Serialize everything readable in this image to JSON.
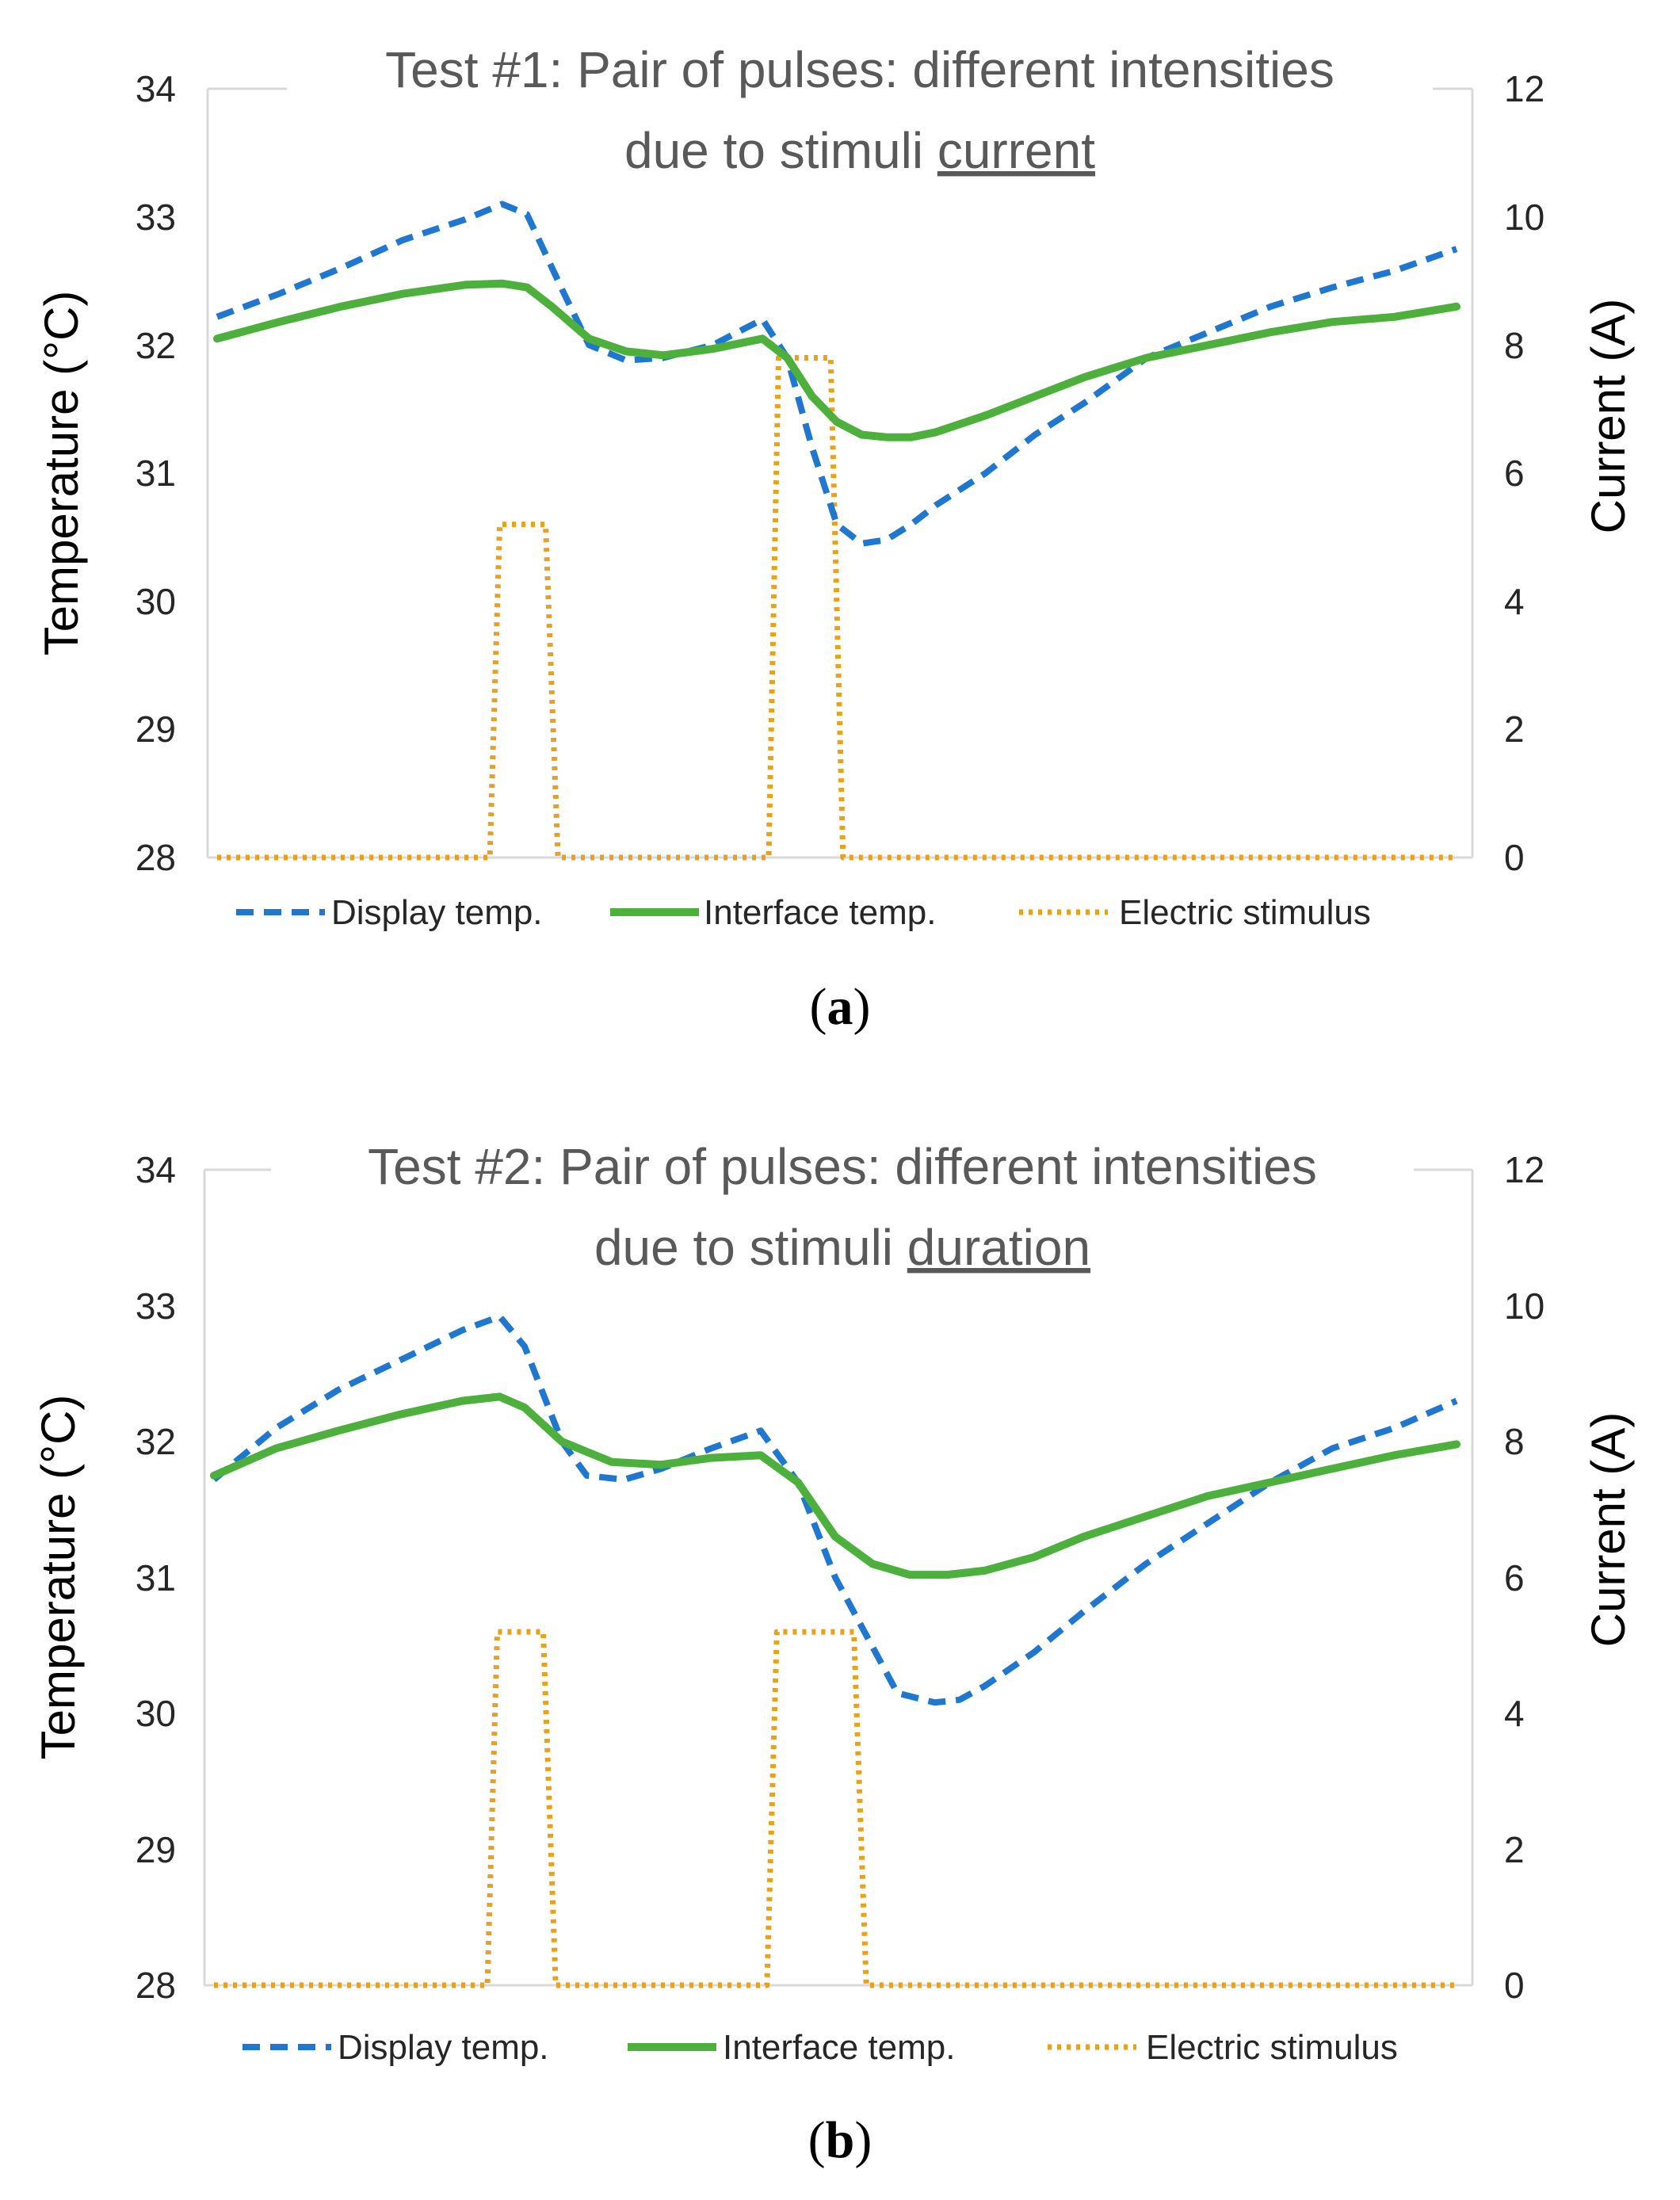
{
  "chart_data": [
    {
      "type": "line",
      "panel_label": "a",
      "title_line1": "Test #1: Pair of pulses: different intensities",
      "title_line2_prefix": "due to stimuli ",
      "title_line2_underlined": "current",
      "ylabel_left": "Temperature (°C)",
      "ylabel_right": "Current (A)",
      "xlabel": "",
      "ylim_left": [
        28,
        34
      ],
      "ylim_right": [
        0,
        12
      ],
      "yticks_left": [
        28,
        29,
        30,
        31,
        32,
        33,
        34
      ],
      "yticks_right": [
        0,
        2,
        4,
        6,
        8,
        10,
        12
      ],
      "xlim": [
        0,
        100
      ],
      "legend": [
        "Display temp.",
        "Interface temp.",
        "Electric stimulus"
      ],
      "series": [
        {
          "name": "Display temp.",
          "axis": "left",
          "color": "#1f77d0",
          "style": "dashed",
          "x": [
            0,
            5,
            10,
            15,
            20,
            23,
            25,
            28,
            30,
            33,
            36,
            40,
            44,
            46,
            48,
            50,
            52,
            54,
            56,
            58,
            62,
            66,
            70,
            75,
            80,
            85,
            90,
            95,
            100
          ],
          "y": [
            32.22,
            32.4,
            32.6,
            32.82,
            32.98,
            33.1,
            33.02,
            32.4,
            32.0,
            31.88,
            31.9,
            32.0,
            32.2,
            31.9,
            31.2,
            30.6,
            30.45,
            30.48,
            30.6,
            30.75,
            31.0,
            31.3,
            31.55,
            31.9,
            32.1,
            32.3,
            32.45,
            32.58,
            32.75
          ]
        },
        {
          "name": "Interface temp.",
          "axis": "left",
          "color": "#4db03c",
          "style": "solid",
          "x": [
            0,
            5,
            10,
            15,
            20,
            23,
            25,
            27,
            30,
            33,
            36,
            40,
            44,
            46,
            48,
            50,
            52,
            54,
            56,
            58,
            62,
            66,
            70,
            75,
            80,
            85,
            90,
            95,
            100
          ],
          "y": [
            32.05,
            32.18,
            32.3,
            32.4,
            32.47,
            32.48,
            32.45,
            32.3,
            32.05,
            31.95,
            31.92,
            31.97,
            32.05,
            31.9,
            31.6,
            31.4,
            31.3,
            31.28,
            31.28,
            31.32,
            31.45,
            31.6,
            31.75,
            31.9,
            32.0,
            32.1,
            32.18,
            32.22,
            32.3
          ]
        },
        {
          "name": "Electric stimulus",
          "axis": "right",
          "color": "#e8a020",
          "style": "dotted",
          "x": [
            0,
            22,
            22.8,
            24.5,
            26.5,
            27.5,
            44.5,
            45.3,
            47,
            49.5,
            50.5,
            100
          ],
          "y": [
            0,
            0,
            5.2,
            5.2,
            5.2,
            0,
            0,
            7.8,
            7.8,
            7.8,
            0,
            0
          ]
        }
      ]
    },
    {
      "type": "line",
      "panel_label": "b",
      "title_line1": "Test #2: Pair of pulses: different intensities",
      "title_line2_prefix": "due to stimuli ",
      "title_line2_underlined": "duration",
      "ylabel_left": "Temperature (°C)",
      "ylabel_right": "Current (A)",
      "xlabel": "",
      "ylim_left": [
        28,
        34
      ],
      "ylim_right": [
        0,
        12
      ],
      "yticks_left": [
        28,
        29,
        30,
        31,
        32,
        33,
        34
      ],
      "yticks_right": [
        0,
        2,
        4,
        6,
        8,
        10,
        12
      ],
      "xlim": [
        0,
        100
      ],
      "legend": [
        "Display temp.",
        "Interface temp.",
        "Electric stimulus"
      ],
      "series": [
        {
          "name": "Display temp.",
          "axis": "left",
          "color": "#1f77d0",
          "style": "dashed",
          "x": [
            0,
            5,
            10,
            15,
            20,
            23,
            25,
            28,
            30,
            33,
            36,
            40,
            44,
            47,
            50,
            55,
            58,
            60,
            62,
            66,
            70,
            75,
            80,
            85,
            90,
            95,
            100
          ],
          "y": [
            31.72,
            32.1,
            32.38,
            32.6,
            32.82,
            32.92,
            32.7,
            32.0,
            31.75,
            31.72,
            31.8,
            31.95,
            32.08,
            31.7,
            31.0,
            30.15,
            30.08,
            30.1,
            30.2,
            30.45,
            30.75,
            31.1,
            31.4,
            31.7,
            31.95,
            32.1,
            32.3
          ]
        },
        {
          "name": "Interface temp.",
          "axis": "left",
          "color": "#4db03c",
          "style": "solid",
          "x": [
            0,
            5,
            10,
            15,
            20,
            23,
            25,
            28,
            32,
            36,
            40,
            44,
            47,
            50,
            53,
            56,
            59,
            62,
            66,
            70,
            75,
            80,
            85,
            90,
            95,
            100
          ],
          "y": [
            31.75,
            31.95,
            32.08,
            32.2,
            32.3,
            32.33,
            32.25,
            32.0,
            31.85,
            31.83,
            31.88,
            31.9,
            31.7,
            31.3,
            31.1,
            31.02,
            31.02,
            31.05,
            31.15,
            31.3,
            31.45,
            31.6,
            31.7,
            31.8,
            31.9,
            31.98
          ]
        },
        {
          "name": "Electric stimulus",
          "axis": "right",
          "color": "#e8a020",
          "style": "dotted",
          "x": [
            0,
            22,
            22.8,
            24.5,
            26.5,
            27.5,
            44.5,
            45.3,
            47,
            51.5,
            52.5,
            100
          ],
          "y": [
            0,
            0,
            5.2,
            5.2,
            5.2,
            0,
            0,
            5.2,
            5.2,
            5.2,
            0,
            0
          ]
        }
      ]
    }
  ]
}
